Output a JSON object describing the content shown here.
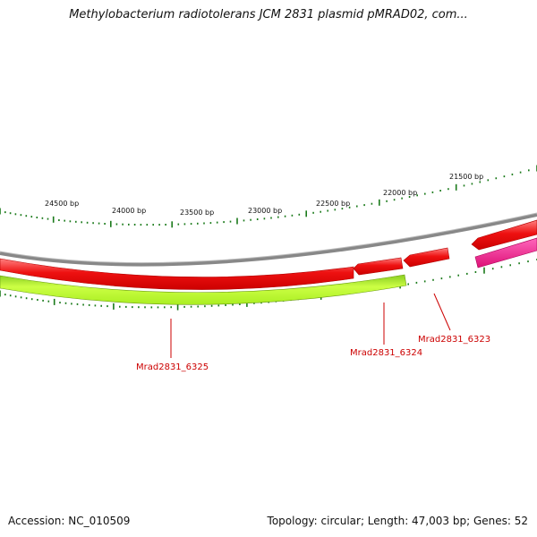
{
  "title": "Methylobacterium radiotolerans JCM 2831 plasmid pMRAD02, com...",
  "footer": {
    "accession": "Accession: NC_010509",
    "summary": "Topology: circular; Length: 47,003 bp; Genes: 52"
  },
  "ruler_labels": [
    "24500 bp",
    "24000 bp",
    "23500 bp",
    "23000 bp",
    "22500 bp",
    "22000 bp",
    "21500 bp"
  ],
  "gene_labels": [
    "Mrad2831_6325",
    "Mrad2831_6324",
    "Mrad2831_6323"
  ],
  "colors": {
    "tick": "#1a7a1a",
    "backbone": "#888888",
    "forward_gene": "#ee1111",
    "reverse_gene": "#aaee22",
    "pink_gene": "#ee2288",
    "label": "#cc0000"
  }
}
